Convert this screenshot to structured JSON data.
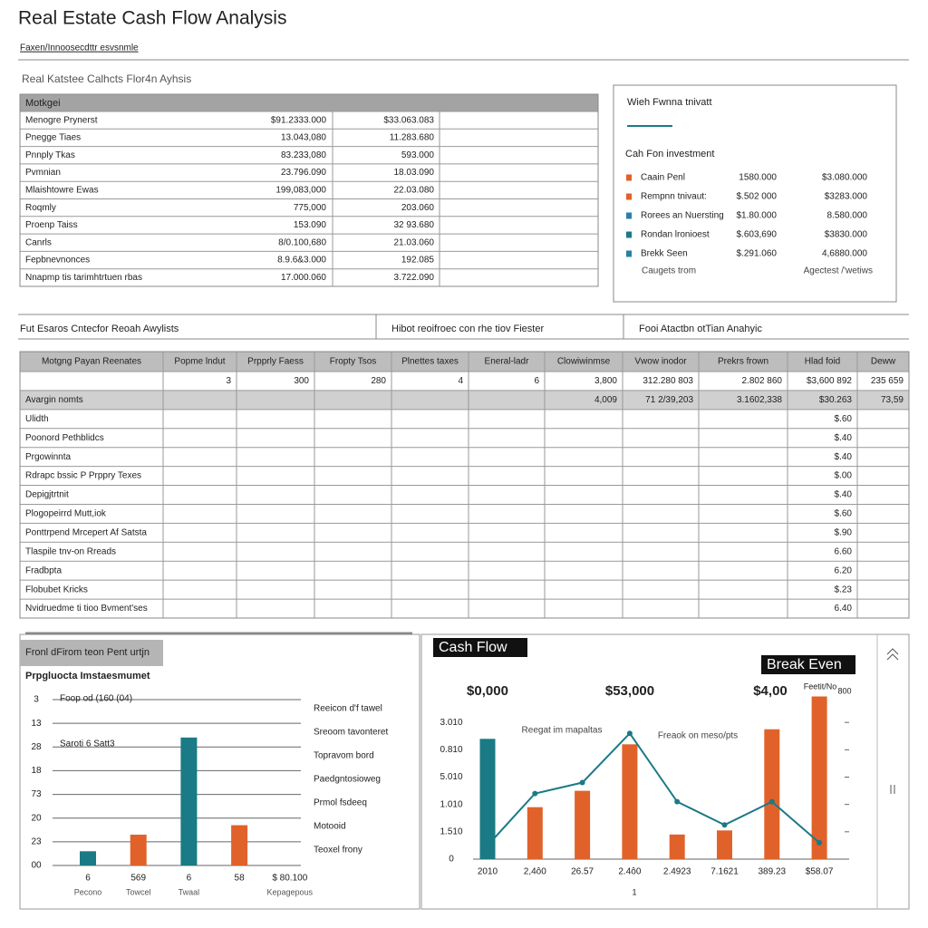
{
  "header": {
    "title": "Real Estate Cash Flow Analysis",
    "subtitle": "Faxen/Innoosecdttr esvsnmle"
  },
  "mortgage": {
    "caption": "Real Katstee Calhcts Flor4n Ayhsis",
    "header": "Motkgei",
    "rows": [
      [
        "Menogre Prynerst",
        "$91.2333.000",
        "$33.063.083"
      ],
      [
        "Pnegge Tiaes",
        "13.043,080",
        "11.283.680"
      ],
      [
        "Pnnply Tkas",
        "83.233,080",
        "593.000"
      ],
      [
        "Pvmnian",
        "23.796.090",
        "18.03.090"
      ],
      [
        "Mlaishtowre Ewas",
        "199,083,000",
        "22.03.080"
      ],
      [
        "Roqmly",
        "775,000",
        "203.060"
      ],
      [
        "Proenp Taiss",
        "153.090",
        "32 93.680"
      ],
      [
        "Canrls",
        "8/0.100,680",
        "21.03.060"
      ],
      [
        "Fepbnevnonces",
        "8.9.6&3.000",
        "192.085"
      ],
      [
        "Nnapmp tis tarimhtrtuen rbas",
        "17.000.060",
        "3.722.090"
      ]
    ]
  },
  "investment": {
    "title": "Wieh Fwnna tnivatt",
    "subtitle": "Cah Fon investment",
    "items": [
      {
        "label": "Caain Penl",
        "color": "#e0622a",
        "a": "1580.000",
        "b": "$3.080.000"
      },
      {
        "label": "Rempnn tnivaut:",
        "color": "#e0622a",
        "a": "$.502 000",
        "b": "$3283.000"
      },
      {
        "label": "Rorees an Nuersting",
        "color": "#2a7fa8",
        "a": "$1.80.000",
        "b": "8.580.000"
      },
      {
        "label": "Rondan lronioest",
        "color": "#1a7a85",
        "a": "$.603,690",
        "b": "$3830.000"
      },
      {
        "label": "Brekk Seen",
        "color": "#2a7fa8",
        "a": "$.291.060",
        "b": "4,6880.000"
      }
    ],
    "footer": [
      "Caugets trom",
      "Agectest /'wetiws"
    ]
  },
  "sections": [
    "Fut Esaros Cntecfor Reoah Awylists",
    "Hibot reoifroec con rhe tiov Fiester",
    "Fooi Atactbn otTian Anahyic"
  ],
  "grid": {
    "columns": [
      "Motgng Payan Reenates",
      "Popme lndut",
      "Prpprly Faess",
      "Fropty Tsos",
      "Plnettes taxes",
      "Eneral-ladr",
      "Clowiwinmse",
      "Vwow inodor",
      "Prekrs frown",
      "Hlad foid",
      "Deww"
    ],
    "rows": [
      [
        null,
        "3",
        "300",
        "280",
        "4",
        "6",
        "3,800",
        "312.280 803",
        "2.802 860",
        "$3,600 892",
        "235 659"
      ],
      [
        "Avargin nomts",
        null,
        null,
        null,
        null,
        null,
        "4,009",
        "71 2/39,203",
        "3.1602,338",
        "$30.263",
        "73,59"
      ],
      [
        "Ulidth",
        null,
        null,
        null,
        null,
        null,
        null,
        null,
        null,
        "$.60",
        null
      ],
      [
        "Poonord Pethblidcs",
        null,
        null,
        null,
        null,
        null,
        null,
        null,
        null,
        "$.40",
        null
      ],
      [
        "Prgowinnta",
        null,
        null,
        null,
        null,
        null,
        null,
        null,
        null,
        "$.40",
        null
      ],
      [
        "Rdrapc bssic P Prppry Texes",
        null,
        null,
        null,
        null,
        null,
        null,
        null,
        null,
        "$.00",
        null
      ],
      [
        "Depigjtrtnit",
        null,
        null,
        null,
        null,
        null,
        null,
        null,
        null,
        "$.40",
        null
      ],
      [
        "Plogopeirrd Mutt,iok",
        null,
        null,
        null,
        null,
        null,
        null,
        null,
        null,
        "$.60",
        null
      ],
      [
        "Ponttrpend Mrcepert Af Satsta",
        null,
        null,
        null,
        null,
        null,
        null,
        null,
        null,
        "$.90",
        null
      ],
      [
        "Tlaspile tnv-on Rreads",
        null,
        null,
        null,
        null,
        null,
        null,
        null,
        null,
        "6.60",
        null
      ],
      [
        "Fradbpta",
        null,
        null,
        null,
        null,
        null,
        null,
        null,
        null,
        "6.20",
        null
      ],
      [
        "Flobubet Kricks",
        null,
        null,
        null,
        null,
        null,
        null,
        null,
        null,
        "$.23",
        null
      ],
      [
        "Nvidruedme ti tioo Bvment'ses",
        null,
        null,
        null,
        null,
        null,
        null,
        null,
        null,
        "6.40",
        null
      ]
    ]
  },
  "chart_data": [
    {
      "type": "bar",
      "title": "Fronl dFirom teon Pent urtjn",
      "subtitle": "Prpgluocta Imstaesmumet",
      "categories": [
        "6",
        "569",
        "6",
        "58",
        "$ 80.100"
      ],
      "x_sublabels": [
        "Pecono",
        "Towcel",
        "Twaal",
        null,
        "Kepagepous"
      ],
      "values": [
        0.6,
        1.3,
        5.4,
        1.7,
        null
      ],
      "colors": [
        "#1a7a85",
        "#e0622a",
        "#1a7a85",
        "#e0622a",
        null
      ],
      "ylim": [
        0,
        7
      ],
      "yticks": [
        {
          "value": 7,
          "label": "3"
        },
        {
          "value": 6,
          "label": "13"
        },
        {
          "value": 5,
          "label": "28"
        },
        {
          "value": 4,
          "label": "18"
        },
        {
          "value": 3,
          "label": "73"
        },
        {
          "value": 2,
          "label": "20"
        },
        {
          "value": 1,
          "label": "23"
        },
        {
          "value": 0,
          "label": "00"
        }
      ],
      "grid": true,
      "annotations": [
        "Foop od (160 (04)",
        "Saroti 6 Satt3"
      ],
      "notes": [
        "Reeicon d'f tawel",
        "Sreoom tavonteret",
        "Topravom bord",
        "Paedgntosioweg",
        "Prmol fsdeeq",
        "Motooid",
        "Teoxel frony"
      ]
    },
    {
      "type": "bar",
      "title": "Cash Flow",
      "annotation": "Break Even",
      "top_labels": [
        "$0,000",
        "$53,000",
        "$4,00",
        "Feetit/No",
        "800"
      ],
      "notes": [
        "Reegat im mapaltas",
        "Freaok on meso/pts"
      ],
      "categories": [
        "2010",
        "2,4ô0",
        "26.57",
        "2.4ô0",
        "2.4923",
        "7.1621",
        "389.23",
        "$58.07"
      ],
      "x_footer": "1",
      "series": [
        {
          "color": "#1a7a85",
          "values": [
            4.4,
            null,
            null,
            null,
            null,
            null,
            null,
            null
          ]
        },
        {
          "color": "#e0622a",
          "values": [
            null,
            1.9,
            2.5,
            4.2,
            0.9,
            1.05,
            4.75,
            5.95
          ]
        },
        {
          "type": "line",
          "color": "#1a7a85",
          "values": [
            0.5,
            2.4,
            2.8,
            4.6,
            2.1,
            1.25,
            2.1,
            0.6
          ]
        }
      ],
      "ylim": [
        0,
        6
      ],
      "yticks": [
        {
          "value": 5,
          "label": "3.010"
        },
        {
          "value": 4,
          "label": "0.810"
        },
        {
          "value": 3,
          "label": "5.010"
        },
        {
          "value": 2,
          "label": "1.010"
        },
        {
          "value": 1,
          "label": "1.510"
        },
        {
          "value": 0,
          "label": "0"
        }
      ]
    }
  ]
}
